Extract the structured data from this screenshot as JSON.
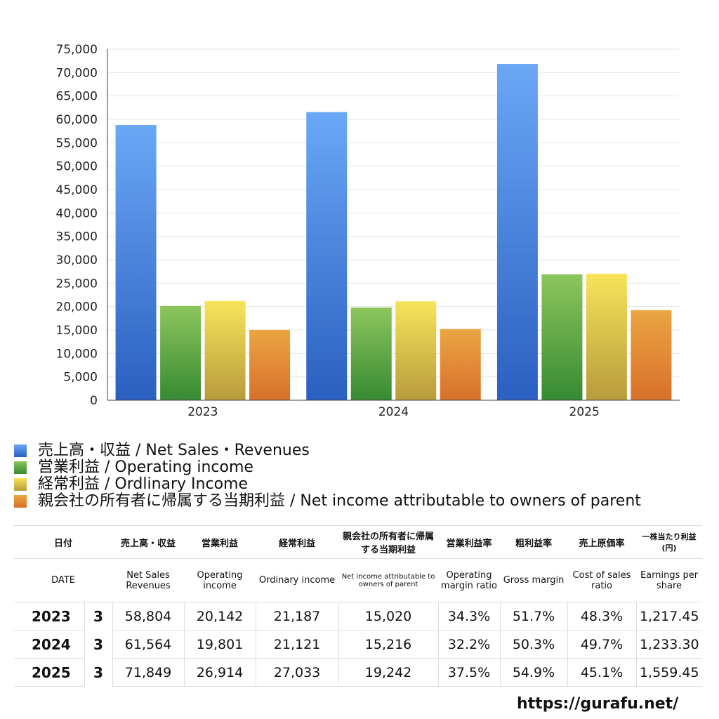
{
  "chart_data": {
    "type": "bar",
    "categories": [
      "2023",
      "2024",
      "2025"
    ],
    "ylim": [
      0,
      75000
    ],
    "yticks": [
      0,
      5000,
      10000,
      15000,
      20000,
      25000,
      30000,
      35000,
      40000,
      45000,
      50000,
      55000,
      60000,
      65000,
      70000,
      75000
    ],
    "ytick_labels": [
      "0",
      "5,000",
      "10,000",
      "15,000",
      "20,000",
      "25,000",
      "30,000",
      "35,000",
      "40,000",
      "45,000",
      "50,000",
      "55,000",
      "60,000",
      "65,000",
      "70,000",
      "75,000"
    ],
    "grid": true,
    "legend_position": "bottom",
    "series": [
      {
        "name": "売上高・収益 / Net Sales・Revenues",
        "values": [
          58804,
          61564,
          71849
        ],
        "color_top": "#6aa8f6",
        "color_bottom": "#2b5fc0"
      },
      {
        "name": "営業利益 / Operating income",
        "values": [
          20142,
          19801,
          26914
        ],
        "color_top": "#8cc65c",
        "color_bottom": "#378a33"
      },
      {
        "name": "経常利益 / Ordlinary Income",
        "values": [
          21187,
          21121,
          27033
        ],
        "color_top": "#f7e45a",
        "color_bottom": "#b79b3c"
      },
      {
        "name": "親会社の所有者に帰属する当期利益 / Net income attributable to owners of parent",
        "values": [
          15020,
          15216,
          19242
        ],
        "color_top": "#eba542",
        "color_bottom": "#d8702b"
      }
    ]
  },
  "table": {
    "header_jp": [
      "日付",
      "売上高・収益",
      "営業利益",
      "経常利益",
      "親会社の所有者に帰属する当期利益",
      "営業利益率",
      "粗利益率",
      "売上原価率",
      "一株当たり利益(円)"
    ],
    "header_en": [
      "DATE",
      "Net Sales Revenues",
      "Operating income",
      "Ordinary income",
      "Net income attributable to owners of parent",
      "Operating margin ratio",
      "Gross margin",
      "Cost of sales ratio",
      "Earnings per share"
    ],
    "rows": [
      [
        "2023",
        "3",
        "58,804",
        "20,142",
        "21,187",
        "15,020",
        "34.3%",
        "51.7%",
        "48.3%",
        "1,217.45"
      ],
      [
        "2024",
        "3",
        "61,564",
        "19,801",
        "21,121",
        "15,216",
        "32.2%",
        "50.3%",
        "49.7%",
        "1,233.30"
      ],
      [
        "2025",
        "3",
        "71,849",
        "26,914",
        "27,033",
        "19,242",
        "37.5%",
        "54.9%",
        "45.1%",
        "1,559.45"
      ]
    ]
  },
  "footer": {
    "url": "https://gurafu.net/"
  }
}
